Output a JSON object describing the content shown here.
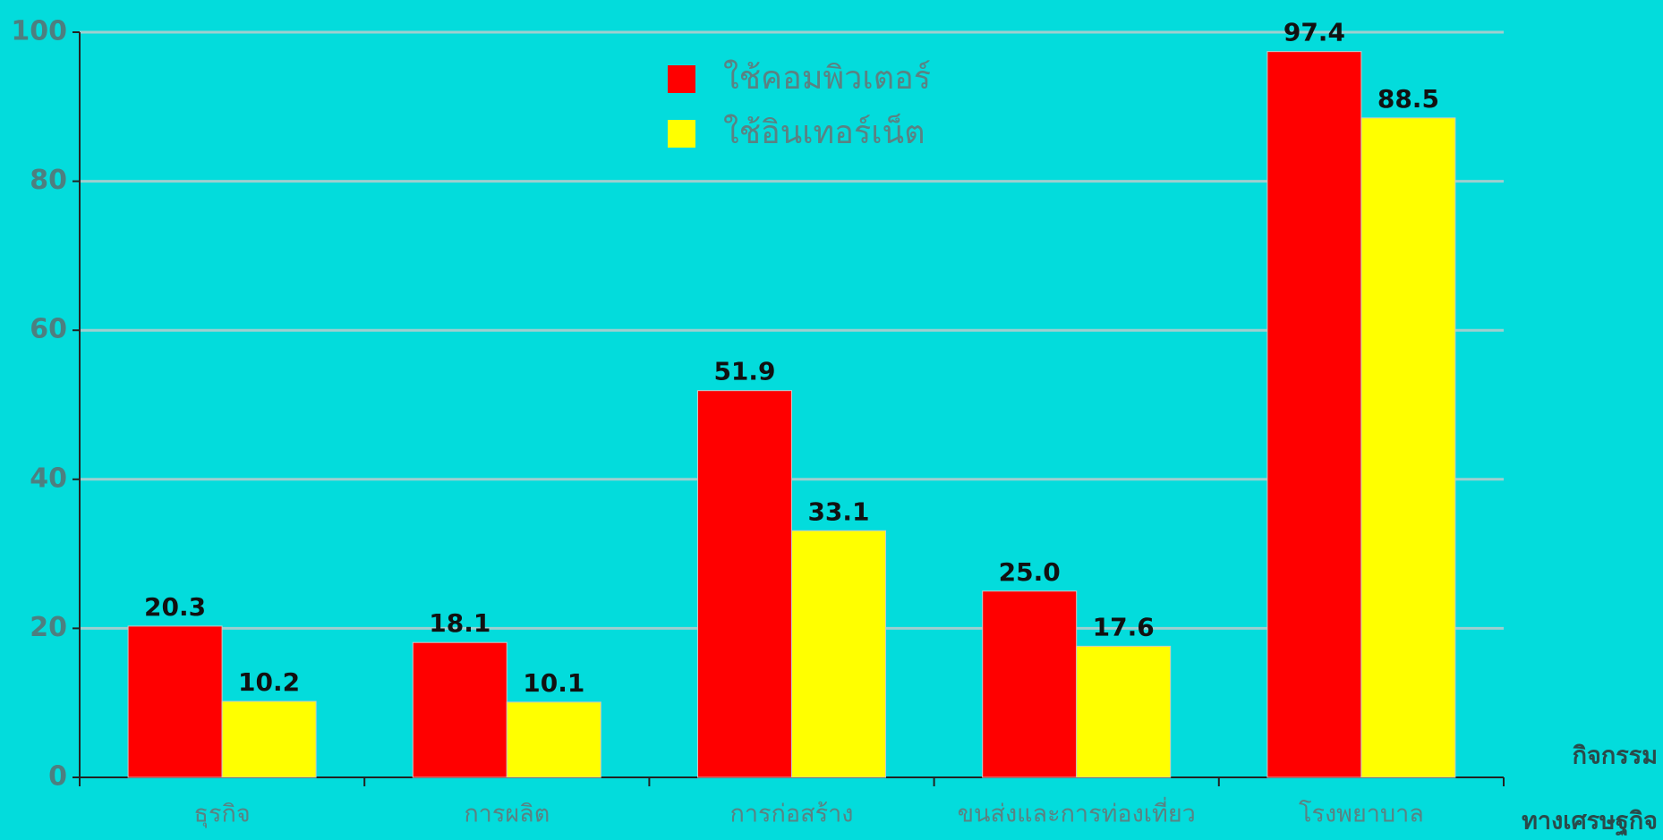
{
  "chart_data": {
    "type": "bar",
    "categories": [
      "ธุรกิจ",
      "การผลิต",
      "การก่อสร้าง",
      "ขนส่งและการท่องเที่ยว",
      "โรงพยาบาล"
    ],
    "series": [
      {
        "name": "ใช้คอมพิวเตอร์",
        "color": "#ff0000",
        "values": [
          20.3,
          18.1,
          51.9,
          25.0,
          97.4
        ],
        "value_labels": [
          "20.3",
          "18.1",
          "51.9",
          "25.0",
          "97.4"
        ]
      },
      {
        "name": "ใช้อินเทอร์เน็ต",
        "color": "#ffff00",
        "values": [
          10.2,
          10.1,
          33.1,
          17.6,
          88.5
        ],
        "value_labels": [
          "10.2",
          "10.1",
          "33.1",
          "17.6",
          "88.5"
        ]
      }
    ],
    "xlabel": [
      "กิจกรรม",
      "ทางเศรษฐกิจ"
    ],
    "ylim": [
      0,
      100
    ],
    "yticks": [
      0,
      20,
      40,
      60,
      80,
      100
    ],
    "grid": true,
    "legend": "top"
  }
}
